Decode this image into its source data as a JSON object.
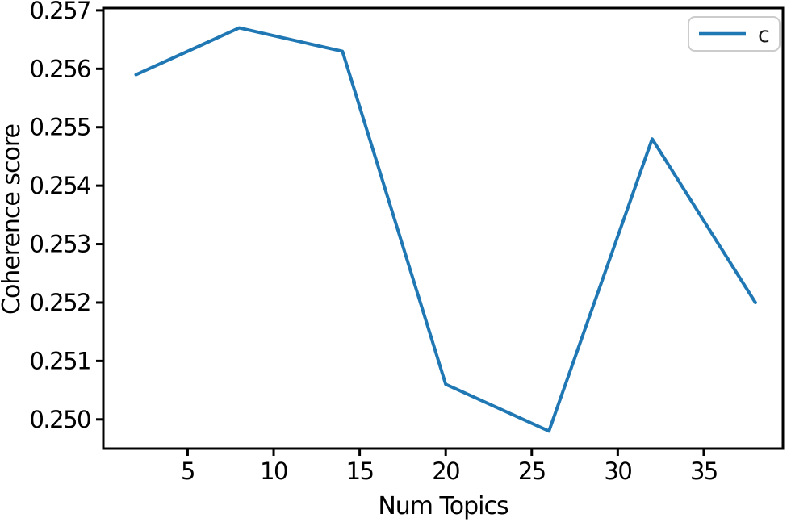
{
  "figure": {
    "background_color": "#ffffff",
    "axis_color": "#000000",
    "text_color": "#000000",
    "legend_border_color": "#cccccc"
  },
  "chart_data": {
    "type": "line",
    "title": "",
    "xlabel": "Num Topics",
    "ylabel": "Coherence score",
    "x": [
      2,
      8,
      14,
      20,
      26,
      32,
      38
    ],
    "series": [
      {
        "name": "c",
        "color": "#1f77b4",
        "values": [
          0.2559,
          0.2567,
          0.2563,
          0.2506,
          0.2498,
          0.2548,
          0.252
        ]
      }
    ],
    "xticks": [
      5,
      10,
      15,
      20,
      25,
      30,
      35
    ],
    "xtick_labels": [
      "5",
      "10",
      "15",
      "20",
      "25",
      "30",
      "35"
    ],
    "yticks": [
      0.25,
      0.251,
      0.252,
      0.253,
      0.254,
      0.255,
      0.256,
      0.257
    ],
    "ytick_labels": [
      "0.250",
      "0.251",
      "0.252",
      "0.253",
      "0.254",
      "0.255",
      "0.256",
      "0.257"
    ],
    "xlim": [
      0.1,
      39.6
    ],
    "ylim": [
      0.2495,
      0.25704
    ],
    "grid": false,
    "legend": {
      "position": "upper right",
      "entries": [
        {
          "label": "c",
          "color": "#1f77b4"
        }
      ]
    }
  }
}
